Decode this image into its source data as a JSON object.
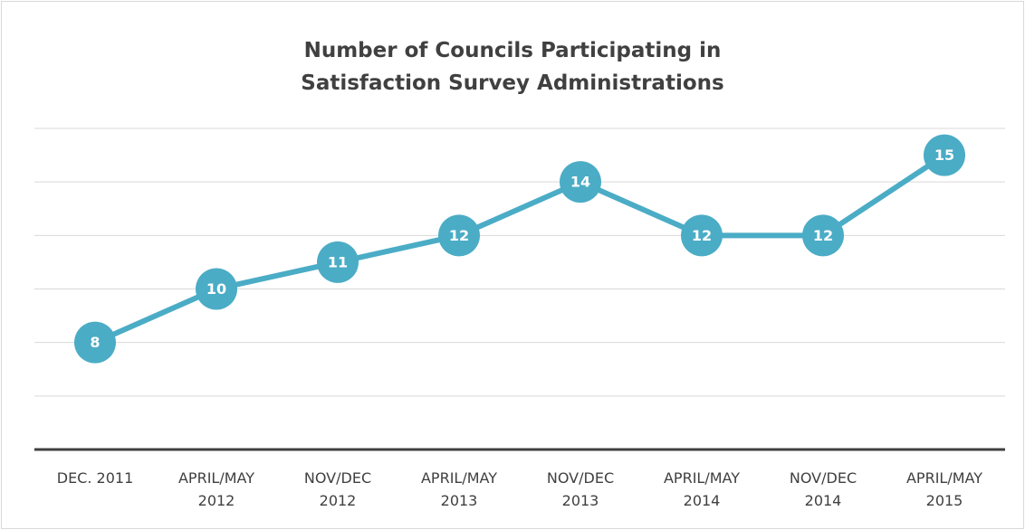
{
  "chart_data": {
    "type": "line",
    "title": "Number of Councils Participating in Satisfaction Survey Administrations",
    "categories": [
      "DEC. 2011",
      "APRIL/MAY 2012",
      "NOV/DEC 2012",
      "APRIL/MAY 2013",
      "NOV/DEC 2013",
      "APRIL/MAY 2014",
      "NOV/DEC 2014",
      "APRIL/MAY 2015"
    ],
    "values": [
      8,
      10,
      11,
      12,
      14,
      12,
      12,
      15
    ],
    "color": "#4bacc6",
    "ylim": [
      4,
      16
    ],
    "yticks": [
      4,
      6,
      8,
      10,
      12,
      14,
      16
    ],
    "grid": true
  }
}
